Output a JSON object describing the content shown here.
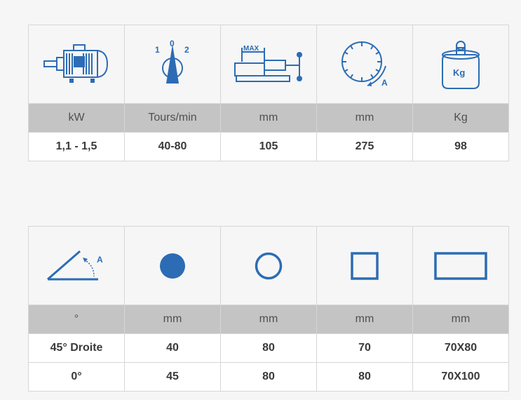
{
  "colors": {
    "icon": "#2c6cb4",
    "unit_bg": "#c4c4c4",
    "border": "#d6d6d6"
  },
  "table1": {
    "icons": [
      "motor-icon",
      "speed-selector-icon",
      "vise-max-icon",
      "saw-blade-icon",
      "weight-icon"
    ],
    "icon_text": {
      "selector_1": "1",
      "selector_0": "0",
      "selector_2": "2",
      "vise": "MAX",
      "blade": "A",
      "weight": "Kg"
    },
    "units": [
      "kW",
      "Tours/min",
      "mm",
      "mm",
      "Kg"
    ],
    "values": [
      "1,1 - 1,5",
      "40-80",
      "105",
      "275",
      "98"
    ]
  },
  "table2": {
    "icons": [
      "angle-icon",
      "round-bar-icon",
      "tube-icon",
      "square-icon",
      "rectangle-icon"
    ],
    "icon_text": {
      "angle": "A"
    },
    "units": [
      "°",
      "mm",
      "mm",
      "mm",
      "mm"
    ],
    "rows": [
      [
        "45° Droite",
        "40",
        "80",
        "70",
        "70X80"
      ],
      [
        "0°",
        "45",
        "80",
        "80",
        "70X100"
      ]
    ]
  }
}
